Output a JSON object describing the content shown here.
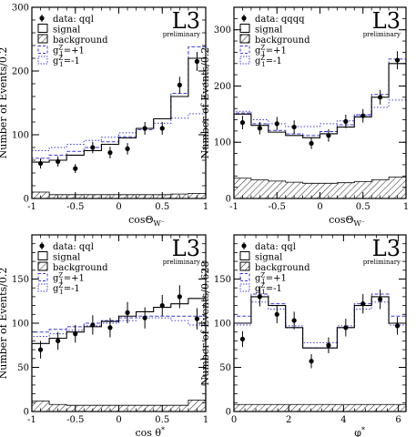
{
  "chart_data": [
    {
      "type": "histogram",
      "experiment": "L3",
      "status": "preliminary",
      "xlabel": "cosΘ",
      "xlabel_sub": "W⁻",
      "ylabel": "Number of Events/0.2",
      "xlim": [
        -1,
        1
      ],
      "ylim": [
        0,
        300
      ],
      "xticks": [
        -1,
        -0.5,
        0,
        0.5,
        1
      ],
      "xtick_labels": [
        "-1",
        "-0.5",
        "0",
        "0.5",
        "1"
      ],
      "yticks": [
        0,
        100,
        200,
        300
      ],
      "ytick_labels": [
        "0",
        "100",
        "200",
        "300"
      ],
      "bins": [
        -1,
        -0.8,
        -0.6,
        -0.4,
        -0.2,
        0,
        0.2,
        0.4,
        0.6,
        0.8,
        1
      ],
      "legend_position": "top-left",
      "legend": {
        "data": "data: qql",
        "signal": "signal",
        "background": "background",
        "gp": "+1",
        "gm": "-1"
      },
      "data_points": {
        "x": [
          -0.9,
          -0.7,
          -0.5,
          -0.3,
          -0.1,
          0.1,
          0.3,
          0.5,
          0.7,
          0.9
        ],
        "y": [
          55,
          58,
          47,
          80,
          72,
          78,
          110,
          110,
          178,
          215
        ],
        "err": [
          8,
          8,
          7,
          9,
          9,
          9,
          10,
          10,
          13,
          15
        ]
      },
      "series": [
        {
          "name": "signal",
          "values": [
            57,
            60,
            68,
            75,
            85,
            95,
            110,
            125,
            160,
            220
          ]
        },
        {
          "name": "background",
          "values": [
            10,
            6,
            6,
            6,
            6,
            6,
            6,
            6,
            7,
            8
          ]
        },
        {
          "name": "+1",
          "values": [
            63,
            68,
            74,
            80,
            89,
            97,
            108,
            125,
            165,
            238
          ]
        },
        {
          "name": "-1",
          "values": [
            75,
            80,
            85,
            91,
            96,
            103,
            110,
            118,
            126,
            133
          ]
        }
      ]
    },
    {
      "type": "histogram",
      "experiment": "L3",
      "status": "preliminary",
      "xlabel": "cosΘ",
      "xlabel_sub": "W⁻",
      "ylabel": "Number of Events/0.2",
      "xlim": [
        -1,
        1
      ],
      "ylim": [
        0,
        340
      ],
      "xticks": [
        -1,
        -0.5,
        0,
        0.5,
        1
      ],
      "xtick_labels": [
        "-1",
        "-0.5",
        "0",
        "0.5",
        "1"
      ],
      "yticks": [
        0,
        100,
        200,
        300
      ],
      "ytick_labels": [
        "0",
        "100",
        "200",
        "300"
      ],
      "bins": [
        -1,
        -0.8,
        -0.6,
        -0.4,
        -0.2,
        0,
        0.2,
        0.4,
        0.6,
        0.8,
        1
      ],
      "legend_position": "top-left",
      "legend": {
        "data": "data: qqqq",
        "signal": "signal",
        "background": "background",
        "gp": "+1",
        "gm": "-1"
      },
      "data_points": {
        "x": [
          -0.9,
          -0.7,
          -0.5,
          -0.3,
          -0.1,
          0.1,
          0.3,
          0.5,
          0.7,
          0.9
        ],
        "y": [
          135,
          125,
          133,
          127,
          98,
          112,
          137,
          147,
          180,
          246
        ],
        "err": [
          12,
          11,
          12,
          12,
          10,
          11,
          12,
          12,
          13,
          16
        ]
      },
      "series": [
        {
          "name": "signal",
          "values": [
            150,
            130,
            118,
            112,
            108,
            115,
            127,
            145,
            180,
            240
          ]
        },
        {
          "name": "background",
          "values": [
            36,
            33,
            31,
            29,
            27,
            27,
            28,
            30,
            33,
            38
          ]
        },
        {
          "name": "+1",
          "values": [
            152,
            133,
            121,
            115,
            112,
            119,
            131,
            149,
            185,
            248
          ]
        },
        {
          "name": "-1",
          "values": [
            155,
            140,
            133,
            128,
            128,
            133,
            138,
            148,
            162,
            175
          ]
        }
      ]
    },
    {
      "type": "histogram",
      "experiment": "L3",
      "status": "preliminary",
      "xlabel": "cos θ",
      "xlabel_sup": "*",
      "ylabel": "Number of Events/0.2",
      "xlim": [
        -1,
        1
      ],
      "ylim": [
        0,
        200
      ],
      "xticks": [
        -1,
        -0.5,
        0,
        0.5,
        1
      ],
      "xtick_labels": [
        "-1",
        "-0.5",
        "0",
        "0.5",
        "1"
      ],
      "yticks": [
        0,
        50,
        100,
        150
      ],
      "ytick_labels": [
        "0",
        "50",
        "100",
        "150"
      ],
      "bins": [
        -1,
        -0.8,
        -0.6,
        -0.4,
        -0.2,
        0,
        0.2,
        0.4,
        0.6,
        0.8,
        1
      ],
      "legend_position": "top-left",
      "legend": {
        "data": "data: qql",
        "signal": "signal",
        "background": "background",
        "gp": "+1",
        "gm": "-1"
      },
      "data_points": {
        "x": [
          -0.9,
          -0.7,
          -0.5,
          -0.3,
          -0.1,
          0.1,
          0.3,
          0.5,
          0.7,
          0.9
        ],
        "y": [
          70,
          80,
          88,
          98,
          95,
          112,
          106,
          120,
          130,
          105
        ],
        "err": [
          10,
          10,
          10,
          11,
          11,
          12,
          12,
          12,
          13,
          12
        ]
      },
      "series": [
        {
          "name": "signal",
          "values": [
            77,
            83,
            90,
            96,
            102,
            108,
            113,
            118,
            122,
            128
          ]
        },
        {
          "name": "background",
          "values": [
            12,
            8,
            7,
            7,
            7,
            7,
            7,
            7,
            7,
            13
          ]
        },
        {
          "name": "+1",
          "values": [
            90,
            93,
            96,
            100,
            103,
            106,
            108,
            108,
            108,
            108
          ]
        },
        {
          "name": "-1",
          "values": [
            85,
            88,
            92,
            97,
            100,
            103,
            106,
            106,
            103,
            98
          ]
        }
      ]
    },
    {
      "type": "histogram",
      "experiment": "L3",
      "status": "preliminary",
      "xlabel": "φ",
      "xlabel_sup": "*",
      "ylabel": "Number of Events/0.628",
      "xlim": [
        0,
        6.28
      ],
      "ylim": [
        0,
        200
      ],
      "xticks": [
        0,
        2,
        4,
        6
      ],
      "xtick_labels": [
        "0",
        "2",
        "4",
        "6"
      ],
      "yticks": [
        0,
        50,
        100,
        150
      ],
      "ytick_labels": [
        "0",
        "50",
        "100",
        "150"
      ],
      "bins": [
        0,
        0.628,
        1.256,
        1.884,
        2.512,
        3.14,
        3.768,
        4.396,
        5.024,
        5.652,
        6.28
      ],
      "legend_position": "top-left",
      "legend": {
        "data": "data: qql",
        "signal": "signal",
        "background": "background",
        "gp": "+1",
        "gm": "-1"
      },
      "data_points": {
        "x": [
          0.314,
          0.942,
          1.57,
          2.198,
          2.826,
          3.454,
          4.082,
          4.71,
          5.338,
          5.966
        ],
        "y": [
          82,
          130,
          110,
          103,
          57,
          75,
          95,
          122,
          127,
          97
        ],
        "err": [
          9,
          11,
          10,
          10,
          8,
          9,
          10,
          11,
          11,
          10
        ]
      },
      "series": [
        {
          "name": "signal",
          "values": [
            100,
            130,
            120,
            95,
            72,
            72,
            95,
            120,
            130,
            100
          ]
        },
        {
          "name": "background",
          "values": [
            8,
            8,
            8,
            8,
            8,
            8,
            8,
            8,
            8,
            8
          ]
        },
        {
          "name": "+1",
          "values": [
            108,
            133,
            122,
            95,
            72,
            72,
            95,
            122,
            133,
            108
          ]
        },
        {
          "name": "-1",
          "values": [
            98,
            124,
            116,
            97,
            78,
            78,
            97,
            116,
            124,
            98
          ]
        }
      ]
    }
  ]
}
